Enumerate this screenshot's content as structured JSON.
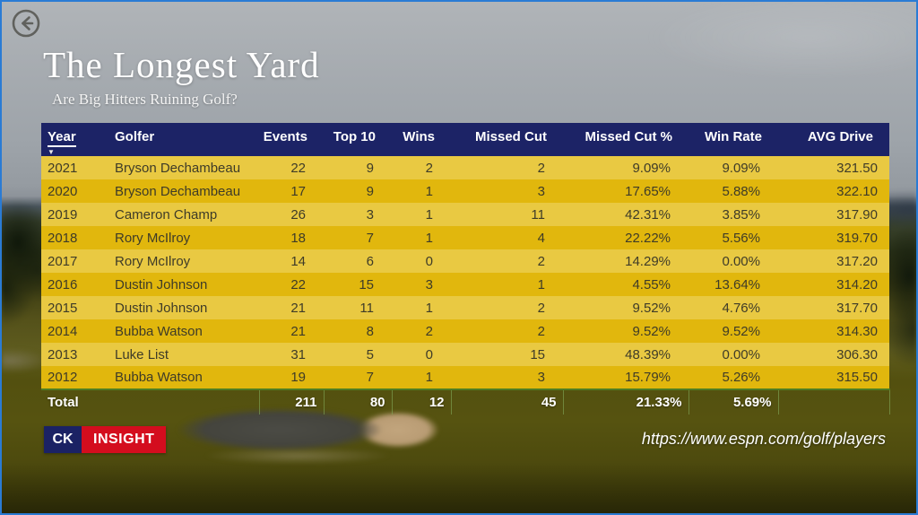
{
  "header": {
    "title": "The Longest Yard",
    "subtitle": "Are Big Hitters Ruining Golf?"
  },
  "footer": {
    "logo_primary": "CK",
    "logo_secondary": "INSIGHT",
    "source_url": "https://www.espn.com/golf/players"
  },
  "colors": {
    "table_header_bg": "#1c2366",
    "row_light": "#e9c942",
    "row_dark": "#e1b70d",
    "logo_navy": "#1b2264",
    "logo_red": "#d40d1e",
    "page_border_blue": "#2a7bd4",
    "total_text": "#ffffff"
  },
  "icons": {
    "back": "back-arrow-icon",
    "sort": "sort-descending-icon"
  },
  "chart_data": {
    "type": "table",
    "title": "The Longest Yard",
    "sort": {
      "column": "Year",
      "direction": "desc"
    },
    "columns": [
      {
        "label": "Year",
        "align": "left"
      },
      {
        "label": "Golfer",
        "align": "left"
      },
      {
        "label": "Events",
        "align": "right"
      },
      {
        "label": "Top 10",
        "align": "right"
      },
      {
        "label": "Wins",
        "align": "right"
      },
      {
        "label": "Missed Cut",
        "align": "right"
      },
      {
        "label": "Missed Cut %",
        "align": "right"
      },
      {
        "label": "Win Rate",
        "align": "right"
      },
      {
        "label": "AVG Drive",
        "align": "right"
      }
    ],
    "rows": [
      [
        "2021",
        "Bryson Dechambeau",
        "22",
        "9",
        "2",
        "2",
        "9.09%",
        "9.09%",
        "321.50"
      ],
      [
        "2020",
        "Bryson Dechambeau",
        "17",
        "9",
        "1",
        "3",
        "17.65%",
        "5.88%",
        "322.10"
      ],
      [
        "2019",
        "Cameron Champ",
        "26",
        "3",
        "1",
        "11",
        "42.31%",
        "3.85%",
        "317.90"
      ],
      [
        "2018",
        "Rory McIlroy",
        "18",
        "7",
        "1",
        "4",
        "22.22%",
        "5.56%",
        "319.70"
      ],
      [
        "2017",
        "Rory McIlroy",
        "14",
        "6",
        "0",
        "2",
        "14.29%",
        "0.00%",
        "317.20"
      ],
      [
        "2016",
        "Dustin Johnson",
        "22",
        "15",
        "3",
        "1",
        "4.55%",
        "13.64%",
        "314.20"
      ],
      [
        "2015",
        "Dustin Johnson",
        "21",
        "11",
        "1",
        "2",
        "9.52%",
        "4.76%",
        "317.70"
      ],
      [
        "2014",
        "Bubba Watson",
        "21",
        "8",
        "2",
        "2",
        "9.52%",
        "9.52%",
        "314.30"
      ],
      [
        "2013",
        "Luke List",
        "31",
        "5",
        "0",
        "15",
        "48.39%",
        "0.00%",
        "306.30"
      ],
      [
        "2012",
        "Bubba Watson",
        "19",
        "7",
        "1",
        "3",
        "15.79%",
        "5.26%",
        "315.50"
      ]
    ],
    "total_row": [
      "Total",
      "",
      "211",
      "80",
      "12",
      "45",
      "21.33%",
      "5.69%",
      ""
    ]
  }
}
